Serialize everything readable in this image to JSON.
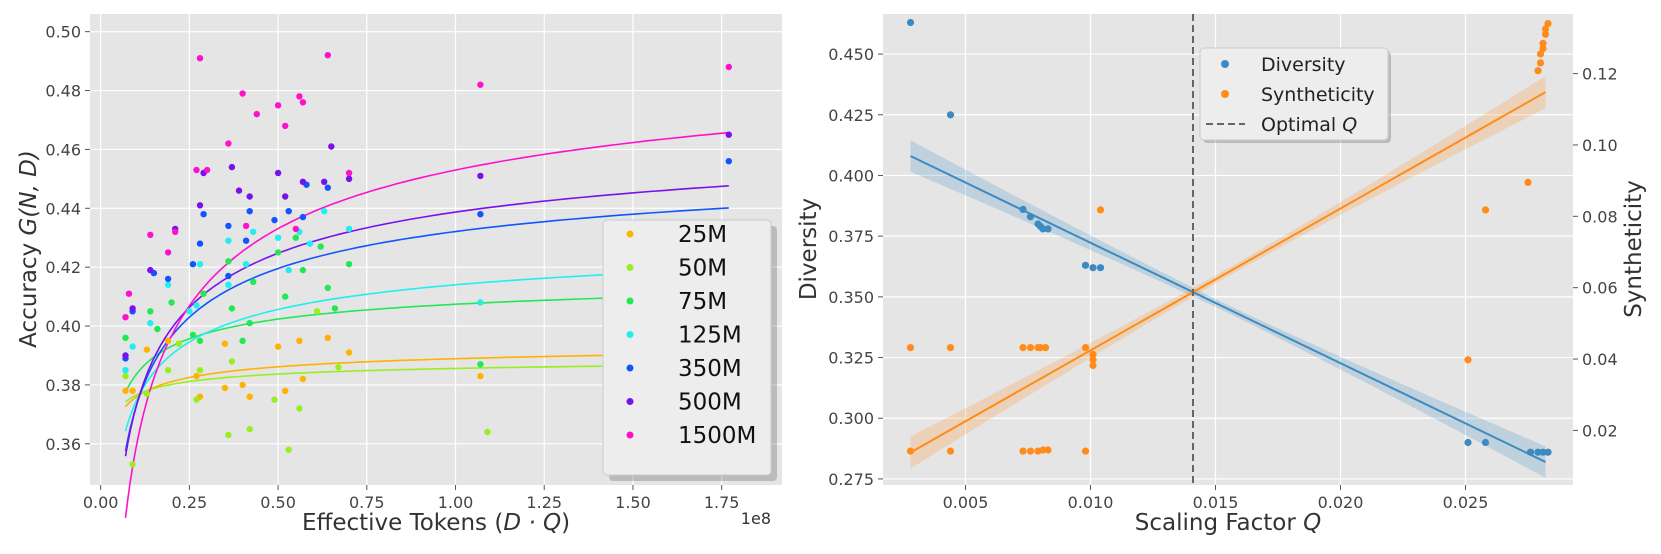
{
  "chart_data": [
    {
      "type": "scatter",
      "xlabel_prefix": "Effective Tokens (",
      "xlabel_math": "D · Q",
      "xlabel_suffix": ")",
      "ylabel_prefix": "Accuracy ",
      "ylabel_math": "G(N, D)",
      "x_offset_label": "1e8",
      "xlim": [
        -0.03,
        1.92
      ],
      "ylim": [
        0.346,
        0.506
      ],
      "xticks": [
        0.0,
        0.25,
        0.5,
        0.75,
        1.0,
        1.25,
        1.5,
        1.75
      ],
      "xtick_labels": [
        "0.00",
        "0.25",
        "0.50",
        "0.75",
        "1.00",
        "1.25",
        "1.50",
        "1.75"
      ],
      "yticks": [
        0.36,
        0.38,
        0.4,
        0.42,
        0.44,
        0.46,
        0.48,
        0.5
      ],
      "ytick_labels": [
        "0.36",
        "0.38",
        "0.40",
        "0.42",
        "0.44",
        "0.46",
        "0.48",
        "0.50"
      ],
      "legend_position": "bottom-right",
      "series": [
        {
          "name": "25M",
          "color": "#ffb300",
          "fit": {
            "a": 0.3975,
            "b": 0.0086,
            "c": 0.4
          },
          "points": [
            [
              0.07,
              0.378
            ],
            [
              0.09,
              0.378
            ],
            [
              0.13,
              0.392
            ],
            [
              0.19,
              0.395
            ],
            [
              0.27,
              0.383
            ],
            [
              0.28,
              0.376
            ],
            [
              0.35,
              0.394
            ],
            [
              0.35,
              0.379
            ],
            [
              0.4,
              0.38
            ],
            [
              0.42,
              0.376
            ],
            [
              0.5,
              0.393
            ],
            [
              0.52,
              0.378
            ],
            [
              0.56,
              0.395
            ],
            [
              0.57,
              0.382
            ],
            [
              0.64,
              0.396
            ],
            [
              0.7,
              0.391
            ],
            [
              1.07,
              0.383
            ]
          ]
        },
        {
          "name": "50M",
          "color": "#99ee22",
          "fit": {
            "a": 0.3916,
            "b": 0.006,
            "c": 0.4
          },
          "points": [
            [
              0.07,
              0.383
            ],
            [
              0.09,
              0.353
            ],
            [
              0.13,
              0.377
            ],
            [
              0.19,
              0.385
            ],
            [
              0.22,
              0.394
            ],
            [
              0.27,
              0.375
            ],
            [
              0.28,
              0.385
            ],
            [
              0.36,
              0.363
            ],
            [
              0.37,
              0.388
            ],
            [
              0.42,
              0.365
            ],
            [
              0.49,
              0.375
            ],
            [
              0.53,
              0.358
            ],
            [
              0.56,
              0.372
            ],
            [
              0.67,
              0.386
            ],
            [
              0.61,
              0.405
            ],
            [
              1.09,
              0.364
            ]
          ]
        },
        {
          "name": "75M",
          "color": "#22e855",
          "fit": {
            "a": 0.4232,
            "b": 0.0158,
            "c": 0.4
          },
          "points": [
            [
              0.07,
              0.396
            ],
            [
              0.14,
              0.405
            ],
            [
              0.16,
              0.399
            ],
            [
              0.2,
              0.408
            ],
            [
              0.26,
              0.397
            ],
            [
              0.28,
              0.395
            ],
            [
              0.29,
              0.411
            ],
            [
              0.36,
              0.422
            ],
            [
              0.37,
              0.406
            ],
            [
              0.4,
              0.395
            ],
            [
              0.42,
              0.401
            ],
            [
              0.43,
              0.415
            ],
            [
              0.5,
              0.425
            ],
            [
              0.52,
              0.41
            ],
            [
              0.55,
              0.43
            ],
            [
              0.57,
              0.419
            ],
            [
              0.62,
              0.427
            ],
            [
              0.64,
              0.413
            ],
            [
              0.66,
              0.406
            ],
            [
              0.7,
              0.421
            ],
            [
              1.07,
              0.387
            ]
          ]
        },
        {
          "name": "125M",
          "color": "#22eeee",
          "fit": {
            "a": 0.4402,
            "b": 0.0262,
            "c": 0.4
          },
          "points": [
            [
              0.07,
              0.385
            ],
            [
              0.09,
              0.393
            ],
            [
              0.14,
              0.401
            ],
            [
              0.19,
              0.414
            ],
            [
              0.25,
              0.405
            ],
            [
              0.27,
              0.407
            ],
            [
              0.28,
              0.421
            ],
            [
              0.36,
              0.429
            ],
            [
              0.36,
              0.414
            ],
            [
              0.41,
              0.421
            ],
            [
              0.43,
              0.432
            ],
            [
              0.5,
              0.43
            ],
            [
              0.53,
              0.419
            ],
            [
              0.56,
              0.432
            ],
            [
              0.59,
              0.428
            ],
            [
              0.63,
              0.439
            ],
            [
              0.7,
              0.433
            ],
            [
              1.07,
              0.408
            ]
          ]
        },
        {
          "name": "350M",
          "color": "#1155ff",
          "fit": {
            "a": 0.4714,
            "b": 0.0393,
            "c": 0.4
          },
          "points": [
            [
              0.07,
              0.389
            ],
            [
              0.09,
              0.405
            ],
            [
              0.15,
              0.418
            ],
            [
              0.19,
              0.416
            ],
            [
              0.26,
              0.421
            ],
            [
              0.28,
              0.428
            ],
            [
              0.29,
              0.438
            ],
            [
              0.36,
              0.434
            ],
            [
              0.36,
              0.417
            ],
            [
              0.41,
              0.429
            ],
            [
              0.42,
              0.439
            ],
            [
              0.49,
              0.436
            ],
            [
              0.53,
              0.439
            ],
            [
              0.57,
              0.437
            ],
            [
              0.58,
              0.448
            ],
            [
              0.64,
              0.447
            ],
            [
              1.07,
              0.438
            ],
            [
              1.77,
              0.456
            ]
          ]
        },
        {
          "name": "500M",
          "color": "#7711ee",
          "fit": {
            "a": 0.4824,
            "b": 0.0437,
            "c": 0.4
          },
          "points": [
            [
              0.07,
              0.39
            ],
            [
              0.09,
              0.406
            ],
            [
              0.14,
              0.419
            ],
            [
              0.21,
              0.433
            ],
            [
              0.28,
              0.441
            ],
            [
              0.29,
              0.452
            ],
            [
              0.37,
              0.454
            ],
            [
              0.39,
              0.446
            ],
            [
              0.42,
              0.444
            ],
            [
              0.5,
              0.452
            ],
            [
              0.52,
              0.444
            ],
            [
              0.57,
              0.449
            ],
            [
              0.63,
              0.449
            ],
            [
              0.65,
              0.461
            ],
            [
              0.7,
              0.45
            ],
            [
              1.07,
              0.451
            ],
            [
              1.77,
              0.465
            ]
          ]
        },
        {
          "name": "1500M",
          "color": "#ff11cc",
          "fit": {
            "a": 0.5153,
            "b": 0.0623,
            "c": 0.4
          },
          "points": [
            [
              0.07,
              0.403
            ],
            [
              0.08,
              0.411
            ],
            [
              0.14,
              0.431
            ],
            [
              0.19,
              0.425
            ],
            [
              0.21,
              0.432
            ],
            [
              0.27,
              0.453
            ],
            [
              0.28,
              0.491
            ],
            [
              0.3,
              0.453
            ],
            [
              0.36,
              0.462
            ],
            [
              0.4,
              0.479
            ],
            [
              0.41,
              0.434
            ],
            [
              0.44,
              0.472
            ],
            [
              0.5,
              0.475
            ],
            [
              0.52,
              0.468
            ],
            [
              0.55,
              0.433
            ],
            [
              0.57,
              0.476
            ],
            [
              0.56,
              0.478
            ],
            [
              0.64,
              0.492
            ],
            [
              0.7,
              0.452
            ],
            [
              1.07,
              0.482
            ],
            [
              1.77,
              0.488
            ]
          ]
        }
      ]
    },
    {
      "type": "scatter",
      "xlabel_prefix": "Scaling Factor ",
      "xlabel_math": "Q",
      "ylabel_left": "Diversity",
      "ylabel_right": "Syntheticity",
      "xlim": [
        0.0017,
        0.0293
      ],
      "ylim_left": [
        0.2725,
        0.4665
      ],
      "ylim_right": [
        0.0047,
        0.1367
      ],
      "xticks": [
        0.005,
        0.01,
        0.015,
        0.02,
        0.025
      ],
      "xtick_labels": [
        "0.005",
        "0.010",
        "0.015",
        "0.020",
        "0.025"
      ],
      "yticks_left": [
        0.275,
        0.3,
        0.325,
        0.35,
        0.375,
        0.4,
        0.425,
        0.45
      ],
      "ytick_labels_left": [
        "0.275",
        "0.300",
        "0.325",
        "0.350",
        "0.375",
        "0.400",
        "0.425",
        "0.450"
      ],
      "yticks_right": [
        0.02,
        0.04,
        0.06,
        0.08,
        0.1,
        0.12
      ],
      "ytick_labels_right": [
        "0.02",
        "0.04",
        "0.06",
        "0.08",
        "0.10",
        "0.12"
      ],
      "optimal_q": 0.0141,
      "legend_position": "upper-center",
      "legend": [
        {
          "name": "Diversity",
          "color": "#3b8bc2"
        },
        {
          "name": "Syntheticity",
          "color": "#ff8c1a"
        },
        {
          "name_prefix": "Optimal ",
          "name_math": "Q",
          "color": "#666666"
        }
      ],
      "diversity": {
        "color": "#3b8bc2",
        "fit": {
          "x0": 0.0028,
          "y0": 0.408,
          "x1": 0.0282,
          "y1": 0.282
        },
        "points": [
          [
            0.0028,
            0.463
          ],
          [
            0.0044,
            0.425
          ],
          [
            0.0073,
            0.386
          ],
          [
            0.0076,
            0.383
          ],
          [
            0.0079,
            0.38
          ],
          [
            0.008,
            0.379
          ],
          [
            0.0081,
            0.378
          ],
          [
            0.0083,
            0.378
          ],
          [
            0.0098,
            0.363
          ],
          [
            0.0101,
            0.362
          ],
          [
            0.0104,
            0.362
          ],
          [
            0.0251,
            0.29
          ],
          [
            0.0258,
            0.29
          ],
          [
            0.0276,
            0.286
          ],
          [
            0.0279,
            0.286
          ],
          [
            0.0281,
            0.286
          ],
          [
            0.0283,
            0.286
          ]
        ]
      },
      "syntheticity": {
        "color": "#ff8c1a",
        "fit": {
          "x0": 0.0028,
          "y0": 0.0138,
          "x1": 0.0282,
          "y1": 0.1148
        },
        "points": [
          [
            0.0028,
            0.0432
          ],
          [
            0.0028,
            0.0142
          ],
          [
            0.0044,
            0.0432
          ],
          [
            0.0044,
            0.0142
          ],
          [
            0.0073,
            0.0432
          ],
          [
            0.0073,
            0.0142
          ],
          [
            0.0076,
            0.0432
          ],
          [
            0.0076,
            0.0142
          ],
          [
            0.0079,
            0.0432
          ],
          [
            0.0079,
            0.0142
          ],
          [
            0.008,
            0.0432
          ],
          [
            0.0081,
            0.0145
          ],
          [
            0.0082,
            0.0432
          ],
          [
            0.0083,
            0.0145
          ],
          [
            0.0098,
            0.0432
          ],
          [
            0.0098,
            0.0142
          ],
          [
            0.0101,
            0.0413
          ],
          [
            0.0101,
            0.0398
          ],
          [
            0.0101,
            0.0382
          ],
          [
            0.0104,
            0.0818
          ],
          [
            0.0251,
            0.0398
          ],
          [
            0.0258,
            0.0818
          ],
          [
            0.0275,
            0.0895
          ],
          [
            0.0279,
            0.1208
          ],
          [
            0.028,
            0.123
          ],
          [
            0.028,
            0.1255
          ],
          [
            0.0281,
            0.127
          ],
          [
            0.0281,
            0.1285
          ],
          [
            0.0282,
            0.131
          ],
          [
            0.0282,
            0.1325
          ],
          [
            0.0283,
            0.134
          ]
        ]
      }
    }
  ]
}
